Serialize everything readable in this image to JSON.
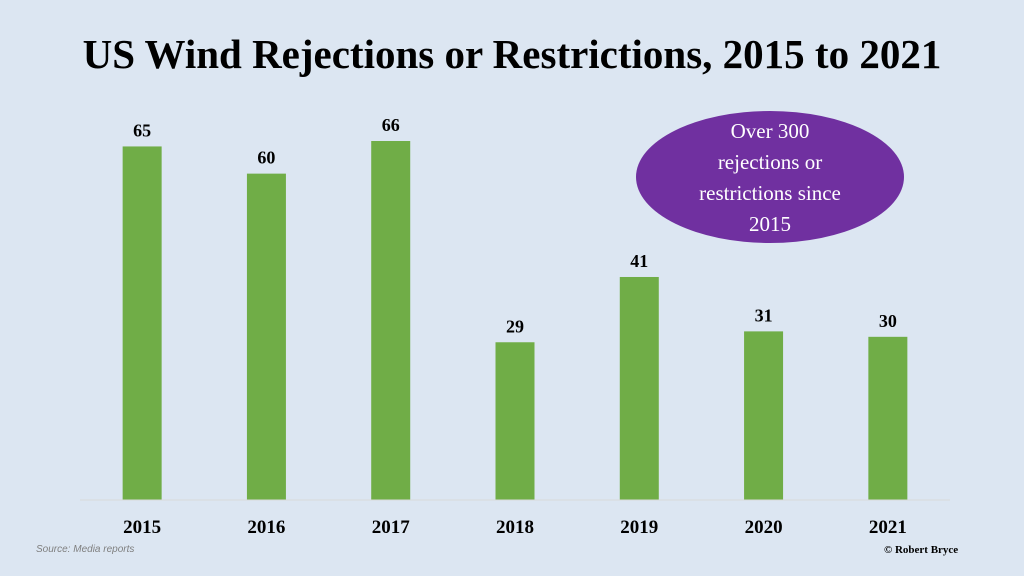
{
  "chart_data": {
    "type": "bar",
    "title": "US Wind Rejections or Restrictions, 2015 to 2021",
    "categories": [
      "2015",
      "2016",
      "2017",
      "2018",
      "2019",
      "2020",
      "2021"
    ],
    "values": [
      65,
      60,
      66,
      29,
      41,
      31,
      30
    ],
    "ylim": [
      0,
      70
    ],
    "grid": false,
    "bar_color": "#70ad47",
    "annotation": {
      "lines": [
        "Over 300",
        "rejections or",
        "restrictions since",
        "2015"
      ],
      "color": "#7030a0"
    }
  },
  "footer": {
    "source": "Source: Media reports",
    "credit": "© Robert Bryce"
  }
}
